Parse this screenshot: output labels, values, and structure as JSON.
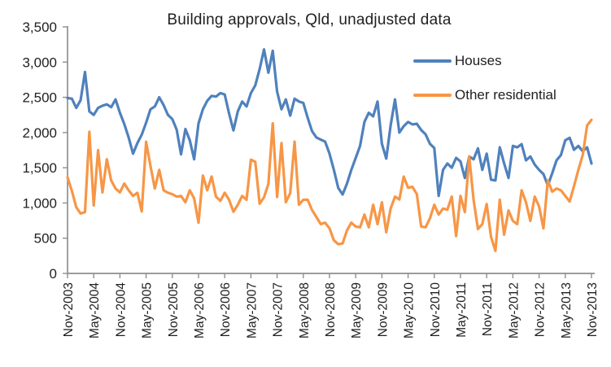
{
  "figure": {
    "background": "#ffffff",
    "axis_color": "#8f8f8f",
    "text_color": "#1f1f1f"
  },
  "y_axis": {
    "tick_labels": [
      "3,500",
      "3,000",
      "2,500",
      "2,000",
      "1,500",
      "1,000",
      "500",
      "0"
    ],
    "min": 0,
    "max": 3500,
    "step": 500
  },
  "x_axis": {
    "tick_labels": [
      "Nov-2003",
      "May-2004",
      "Nov-2004",
      "May-2005",
      "Nov-2005",
      "May-2006",
      "Nov-2006",
      "May-2007",
      "Nov-2007",
      "May-2008",
      "Nov-2008",
      "May-2009",
      "Nov-2009",
      "May-2010",
      "Nov-2010",
      "May-2011",
      "Nov-2011",
      "May-2012",
      "Nov-2012",
      "May-2013",
      "Nov-2013"
    ],
    "label_rotation_deg": -90
  },
  "chart_data": {
    "type": "line",
    "title": "Building approvals, Qld, unadjusted data",
    "xlabel": "",
    "ylabel": "",
    "ylim": [
      0,
      3500
    ],
    "grid": false,
    "legend_position": "inside-top-right",
    "x_frequency": "monthly",
    "x_start": "Nov-2003",
    "x_end": "Nov-2013",
    "series": [
      {
        "name": "Houses",
        "color": "#4F81BD",
        "values": [
          2490,
          2480,
          2350,
          2460,
          2860,
          2300,
          2250,
          2350,
          2380,
          2400,
          2360,
          2470,
          2280,
          2120,
          1930,
          1700,
          1850,
          1970,
          2140,
          2330,
          2370,
          2500,
          2390,
          2250,
          2190,
          2040,
          1690,
          2050,
          1890,
          1620,
          2130,
          2330,
          2450,
          2520,
          2510,
          2560,
          2540,
          2270,
          2030,
          2300,
          2440,
          2370,
          2560,
          2670,
          2900,
          3180,
          2850,
          3160,
          2580,
          2330,
          2470,
          2240,
          2480,
          2440,
          2420,
          2210,
          2020,
          1930,
          1900,
          1870,
          1700,
          1470,
          1215,
          1120,
          1275,
          1470,
          1640,
          1810,
          2150,
          2280,
          2230,
          2440,
          1840,
          1630,
          2100,
          2470,
          2000,
          2090,
          2150,
          2115,
          2125,
          2035,
          1975,
          1840,
          1780,
          1100,
          1470,
          1560,
          1500,
          1640,
          1590,
          1355,
          1660,
          1620,
          1775,
          1470,
          1700,
          1330,
          1320,
          1790,
          1560,
          1355,
          1810,
          1790,
          1835,
          1605,
          1660,
          1545,
          1470,
          1410,
          1250,
          1420,
          1605,
          1680,
          1890,
          1925,
          1755,
          1810,
          1735,
          1790,
          1560
        ]
      },
      {
        "name": "Other residential",
        "color": "#F79646",
        "values": [
          1365,
          1170,
          940,
          850,
          870,
          2010,
          965,
          1750,
          1150,
          1620,
          1320,
          1205,
          1150,
          1275,
          1180,
          1100,
          1145,
          880,
          1870,
          1525,
          1205,
          1470,
          1180,
          1145,
          1125,
          1090,
          1100,
          1010,
          1180,
          1065,
          720,
          1390,
          1180,
          1375,
          1090,
          1030,
          1145,
          1045,
          875,
          975,
          1100,
          1045,
          1615,
          1585,
          990,
          1080,
          1270,
          2130,
          1085,
          1850,
          1010,
          1140,
          1870,
          975,
          1045,
          1045,
          900,
          800,
          700,
          720,
          640,
          470,
          415,
          425,
          610,
          720,
          665,
          655,
          835,
          655,
          975,
          700,
          1010,
          585,
          920,
          1090,
          1050,
          1375,
          1215,
          1230,
          1125,
          665,
          655,
          780,
          975,
          835,
          920,
          905,
          1090,
          530,
          1100,
          870,
          1660,
          1045,
          630,
          700,
          985,
          515,
          320,
          1045,
          550,
          895,
          745,
          700,
          1180,
          1010,
          745,
          1090,
          950,
          640,
          1320,
          1160,
          1205,
          1180,
          1100,
          1020,
          1240,
          1470,
          1680,
          2100,
          2180
        ]
      }
    ]
  }
}
